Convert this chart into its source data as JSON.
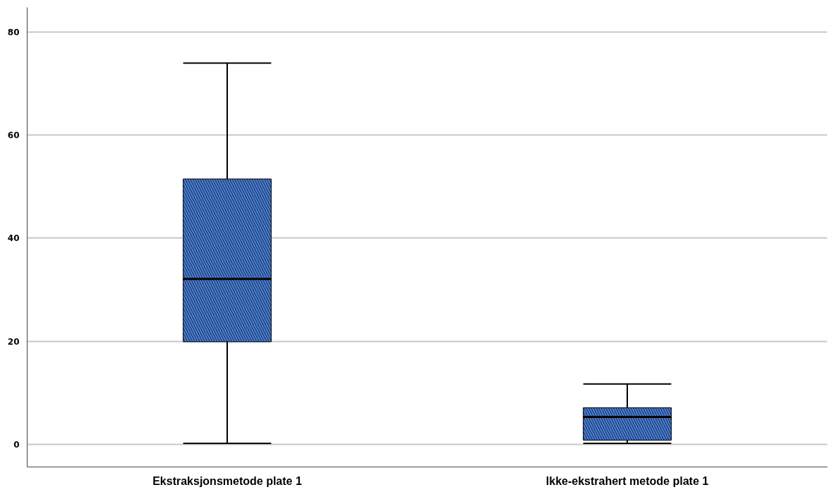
{
  "chart_data": {
    "type": "box",
    "categories": [
      "Ekstraksjonsmetode plate 1",
      "Ikke-ekstrahert metode plate 1"
    ],
    "boxes": [
      {
        "low": 0.2,
        "q1": 19.9,
        "median": 32.1,
        "q3": 51.5,
        "high": 74
      },
      {
        "low": 0.2,
        "q1": 0.8,
        "median": 5.3,
        "q3": 7.1,
        "high": 11.7
      }
    ],
    "color": "#4a7fd4",
    "ylim": [
      -4.4,
      84.8
    ],
    "yticks": [
      0,
      20,
      40,
      60,
      80
    ],
    "grid": "y"
  }
}
